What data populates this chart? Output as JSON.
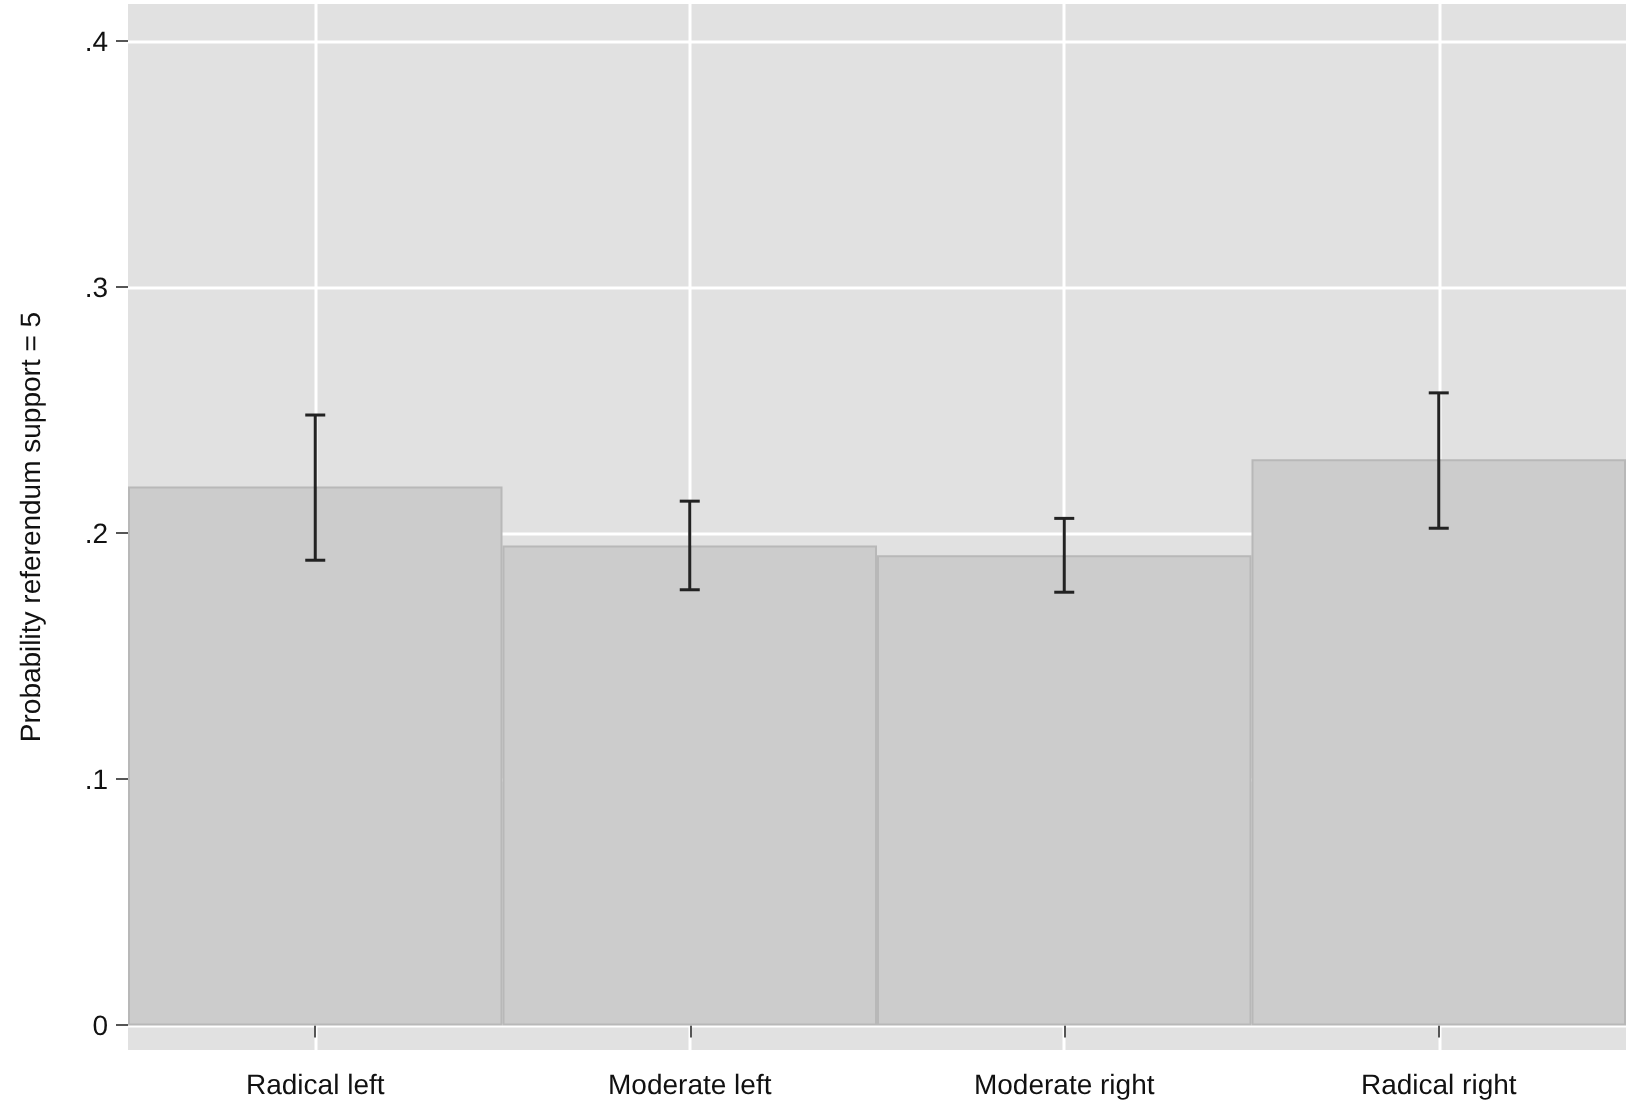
{
  "chart_data": {
    "type": "bar",
    "ylabel": "Probability referendum support = 5",
    "categories": [
      "Radical left",
      "Moderate left",
      "Moderate right",
      "Radical right"
    ],
    "values": [
      0.219,
      0.195,
      0.191,
      0.23
    ],
    "errors": [
      [
        0.189,
        0.248
      ],
      [
        0.177,
        0.213
      ],
      [
        0.176,
        0.206
      ],
      [
        0.202,
        0.257
      ]
    ],
    "color": "#cccccc",
    "ylim": [
      -0.01,
      0.415
    ],
    "yticks": [
      0,
      {
        "value": 0.1,
        "label": ".1"
      },
      {
        "value": 0.2,
        "label": ".2"
      },
      {
        "value": 0.3,
        "label": ".3"
      },
      {
        "value": 0.4,
        "label": ".4"
      }
    ],
    "grid": true
  }
}
